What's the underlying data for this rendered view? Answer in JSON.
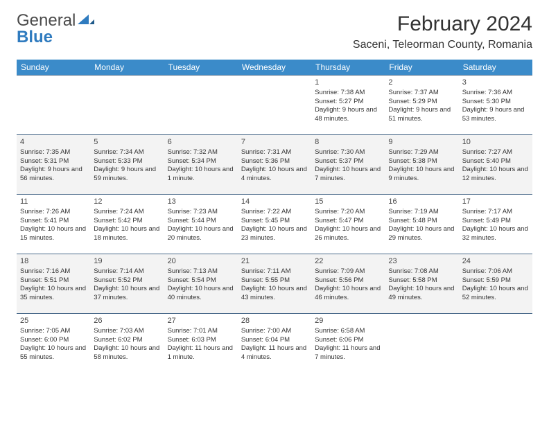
{
  "logo": {
    "part1": "General",
    "part2": "Blue"
  },
  "title": "February 2024",
  "location": "Saceni, Teleorman County, Romania",
  "day_headers": [
    "Sunday",
    "Monday",
    "Tuesday",
    "Wednesday",
    "Thursday",
    "Friday",
    "Saturday"
  ],
  "header_bg": "#3b8bc9",
  "header_fg": "#ffffff",
  "row_alt_bg": "#f3f3f3",
  "row_bg": "#ffffff",
  "cell_border": "#4a6a8a",
  "text_color": "#333333",
  "weeks": [
    [
      null,
      null,
      null,
      null,
      {
        "n": "1",
        "sr": "7:38 AM",
        "ss": "5:27 PM",
        "dl": "9 hours and 48 minutes."
      },
      {
        "n": "2",
        "sr": "7:37 AM",
        "ss": "5:29 PM",
        "dl": "9 hours and 51 minutes."
      },
      {
        "n": "3",
        "sr": "7:36 AM",
        "ss": "5:30 PM",
        "dl": "9 hours and 53 minutes."
      }
    ],
    [
      {
        "n": "4",
        "sr": "7:35 AM",
        "ss": "5:31 PM",
        "dl": "9 hours and 56 minutes."
      },
      {
        "n": "5",
        "sr": "7:34 AM",
        "ss": "5:33 PM",
        "dl": "9 hours and 59 minutes."
      },
      {
        "n": "6",
        "sr": "7:32 AM",
        "ss": "5:34 PM",
        "dl": "10 hours and 1 minute."
      },
      {
        "n": "7",
        "sr": "7:31 AM",
        "ss": "5:36 PM",
        "dl": "10 hours and 4 minutes."
      },
      {
        "n": "8",
        "sr": "7:30 AM",
        "ss": "5:37 PM",
        "dl": "10 hours and 7 minutes."
      },
      {
        "n": "9",
        "sr": "7:29 AM",
        "ss": "5:38 PM",
        "dl": "10 hours and 9 minutes."
      },
      {
        "n": "10",
        "sr": "7:27 AM",
        "ss": "5:40 PM",
        "dl": "10 hours and 12 minutes."
      }
    ],
    [
      {
        "n": "11",
        "sr": "7:26 AM",
        "ss": "5:41 PM",
        "dl": "10 hours and 15 minutes."
      },
      {
        "n": "12",
        "sr": "7:24 AM",
        "ss": "5:42 PM",
        "dl": "10 hours and 18 minutes."
      },
      {
        "n": "13",
        "sr": "7:23 AM",
        "ss": "5:44 PM",
        "dl": "10 hours and 20 minutes."
      },
      {
        "n": "14",
        "sr": "7:22 AM",
        "ss": "5:45 PM",
        "dl": "10 hours and 23 minutes."
      },
      {
        "n": "15",
        "sr": "7:20 AM",
        "ss": "5:47 PM",
        "dl": "10 hours and 26 minutes."
      },
      {
        "n": "16",
        "sr": "7:19 AM",
        "ss": "5:48 PM",
        "dl": "10 hours and 29 minutes."
      },
      {
        "n": "17",
        "sr": "7:17 AM",
        "ss": "5:49 PM",
        "dl": "10 hours and 32 minutes."
      }
    ],
    [
      {
        "n": "18",
        "sr": "7:16 AM",
        "ss": "5:51 PM",
        "dl": "10 hours and 35 minutes."
      },
      {
        "n": "19",
        "sr": "7:14 AM",
        "ss": "5:52 PM",
        "dl": "10 hours and 37 minutes."
      },
      {
        "n": "20",
        "sr": "7:13 AM",
        "ss": "5:54 PM",
        "dl": "10 hours and 40 minutes."
      },
      {
        "n": "21",
        "sr": "7:11 AM",
        "ss": "5:55 PM",
        "dl": "10 hours and 43 minutes."
      },
      {
        "n": "22",
        "sr": "7:09 AM",
        "ss": "5:56 PM",
        "dl": "10 hours and 46 minutes."
      },
      {
        "n": "23",
        "sr": "7:08 AM",
        "ss": "5:58 PM",
        "dl": "10 hours and 49 minutes."
      },
      {
        "n": "24",
        "sr": "7:06 AM",
        "ss": "5:59 PM",
        "dl": "10 hours and 52 minutes."
      }
    ],
    [
      {
        "n": "25",
        "sr": "7:05 AM",
        "ss": "6:00 PM",
        "dl": "10 hours and 55 minutes."
      },
      {
        "n": "26",
        "sr": "7:03 AM",
        "ss": "6:02 PM",
        "dl": "10 hours and 58 minutes."
      },
      {
        "n": "27",
        "sr": "7:01 AM",
        "ss": "6:03 PM",
        "dl": "11 hours and 1 minute."
      },
      {
        "n": "28",
        "sr": "7:00 AM",
        "ss": "6:04 PM",
        "dl": "11 hours and 4 minutes."
      },
      {
        "n": "29",
        "sr": "6:58 AM",
        "ss": "6:06 PM",
        "dl": "11 hours and 7 minutes."
      },
      null,
      null
    ]
  ],
  "labels": {
    "sunrise": "Sunrise:",
    "sunset": "Sunset:",
    "daylight": "Daylight:"
  }
}
